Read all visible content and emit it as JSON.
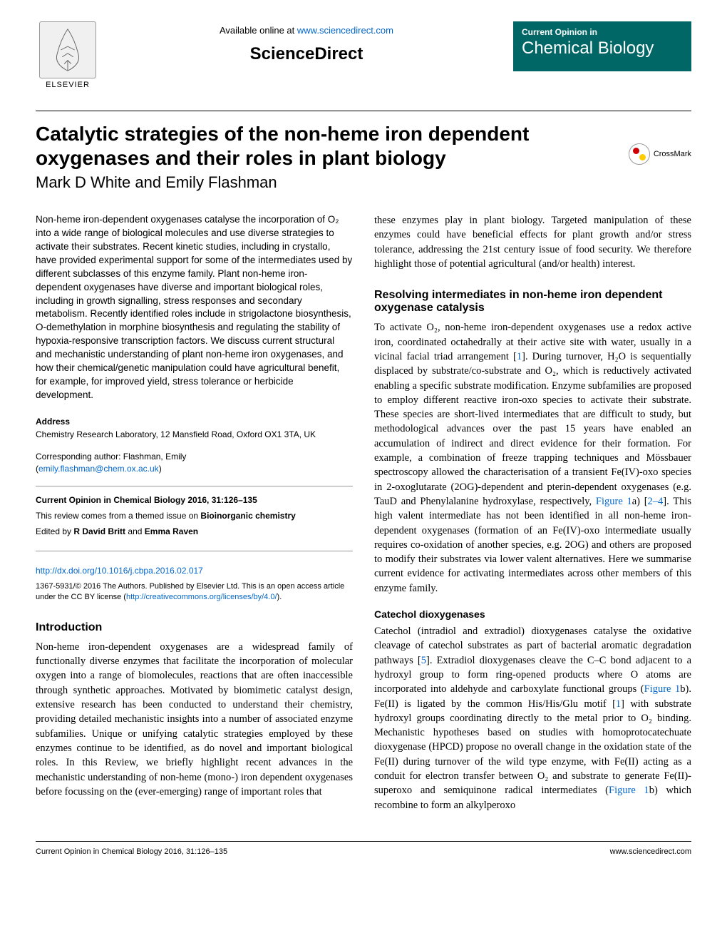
{
  "header": {
    "available_online": "Available online at ",
    "available_online_link": "www.sciencedirect.com",
    "sciencedirect": "ScienceDirect",
    "elsevier": "ELSEVIER",
    "journal_top": "Current Opinion in",
    "journal_main": "Chemical Biology",
    "journal_bg": "#006666",
    "journal_fg": "#ffffff"
  },
  "title": {
    "main": "Catalytic strategies of the non-heme iron dependent oxygenases and their roles in plant biology",
    "authors": "Mark D White and Emily Flashman",
    "crossmark": "CrossMark"
  },
  "abstract": "Non-heme iron-dependent oxygenases catalyse the incorporation of O₂ into a wide range of biological molecules and use diverse strategies to activate their substrates. Recent kinetic studies, including in crystallo, have provided experimental support for some of the intermediates used by different subclasses of this enzyme family. Plant non-heme iron-dependent oxygenases have diverse and important biological roles, including in growth signalling, stress responses and secondary metabolism. Recently identified roles include in strigolactone biosynthesis, O-demethylation in morphine biosynthesis and regulating the stability of hypoxia-responsive transcription factors. We discuss current structural and mechanistic understanding of plant non-heme iron oxygenases, and how their chemical/genetic manipulation could have agricultural benefit, for example, for improved yield, stress tolerance or herbicide development.",
  "address": {
    "heading": "Address",
    "text": "Chemistry Research Laboratory, 12 Mansfield Road, Oxford OX1 3TA, UK"
  },
  "corresponding": {
    "label": "Corresponding author: Flashman, Emily",
    "email": "emily.flashman@chem.ox.ac.uk"
  },
  "meta": {
    "citation": "Current Opinion in Chemical Biology 2016, 31:126–135",
    "themed": "This review comes from a themed issue on ",
    "themed_bold": "Bioinorganic chemistry",
    "edited": "Edited by ",
    "editors": "R David Britt",
    "editors_and": " and ",
    "editors2": "Emma Raven",
    "doi": "http://dx.doi.org/10.1016/j.cbpa.2016.02.017",
    "license": "1367-5931/© 2016 The Authors. Published by Elsevier Ltd. This is an open access article under the CC BY license (",
    "license_link": "http://creativecommons.org/licenses/by/4.0/",
    "license_close": ")."
  },
  "sections": {
    "intro_heading": "Introduction",
    "intro_body": "Non-heme iron-dependent oxygenases are a widespread family of functionally diverse enzymes that facilitate the incorporation of molecular oxygen into a range of biomolecules, reactions that are often inaccessible through synthetic approaches. Motivated by biomimetic catalyst design, extensive research has been conducted to understand their chemistry, providing detailed mechanistic insights into a number of associated enzyme subfamilies. Unique or unifying catalytic strategies employed by these enzymes continue to be identified, as do novel and important biological roles. In this Review, we briefly highlight recent advances in the mechanistic understanding of non-heme (mono-) iron dependent oxygenases before focussing on the (ever-emerging) range of important roles that",
    "col2_lead": "these enzymes play in plant biology. Targeted manipulation of these enzymes could have beneficial effects for plant growth and/or stress tolerance, addressing the 21st century issue of food security. We therefore highlight those of potential agricultural (and/or health) interest.",
    "resolving_heading": "Resolving intermediates in non-heme iron dependent oxygenase catalysis",
    "resolving_body_html": "To activate O₂, non-heme iron-dependent oxygenases use a redox active iron, coordinated octahedrally at their active site with water, usually in a vicinal facial triad arrangement [<a href='#'>1</a>]. During turnover, H₂O is sequentially displaced by substrate/co-substrate and O₂, which is reductively activated enabling a specific substrate modification. Enzyme subfamilies are proposed to employ different reactive iron-oxo species to activate their substrate. These species are short-lived intermediates that are difficult to study, but methodological advances over the past 15 years have enabled an accumulation of indirect and direct evidence for their formation. For example, a combination of freeze trapping techniques and Mössbauer spectroscopy allowed the characterisation of a transient Fe(IV)-oxo species in 2-oxoglutarate (2OG)-dependent and pterin-dependent oxygenases (e.g. TauD and Phenylalanine hydroxylase, respectively, <a href='#'>Figure 1</a>a) [<a href='#'>2–4</a>]. This high valent intermediate has not been identified in all non-heme iron-dependent oxygenases (formation of an Fe(IV)-oxo intermediate usually requires co-oxidation of another species, e.g. 2OG) and others are proposed to modify their substrates via lower valent alternatives. Here we summarise current evidence for activating intermediates across other members of this enzyme family.",
    "catechol_heading": "Catechol dioxygenases",
    "catechol_body_html": "Catechol (intradiol and extradiol) dioxygenases catalyse the oxidative cleavage of catechol substrates as part of bacterial aromatic degradation pathways [<a href='#'>5</a>]. Extradiol dioxygenases cleave the C–C bond adjacent to a hydroxyl group to form ring-opened products where O atoms are incorporated into aldehyde and carboxylate functional groups (<a href='#'>Figure 1</a>b). Fe(II) is ligated by the common His/His/Glu motif [<a href='#'>1</a>] with substrate hydroxyl groups coordinating directly to the metal prior to O₂ binding. Mechanistic hypotheses based on studies with homoprotocatechuate dioxygenase (HPCD) propose no overall change in the oxidation state of the Fe(II) during turnover of the wild type enzyme, with Fe(II) acting as a conduit for electron transfer between O₂ and substrate to generate Fe(II)-superoxo and semiquinone radical intermediates (<a href='#'>Figure 1</a>b) which recombine to form an alkylperoxo"
  },
  "footer": {
    "left": "Current Opinion in Chemical Biology 2016, 31:126–135",
    "right": "www.sciencedirect.com"
  },
  "colors": {
    "link": "#0066cc",
    "text": "#000000",
    "journal_bg": "#006666"
  }
}
